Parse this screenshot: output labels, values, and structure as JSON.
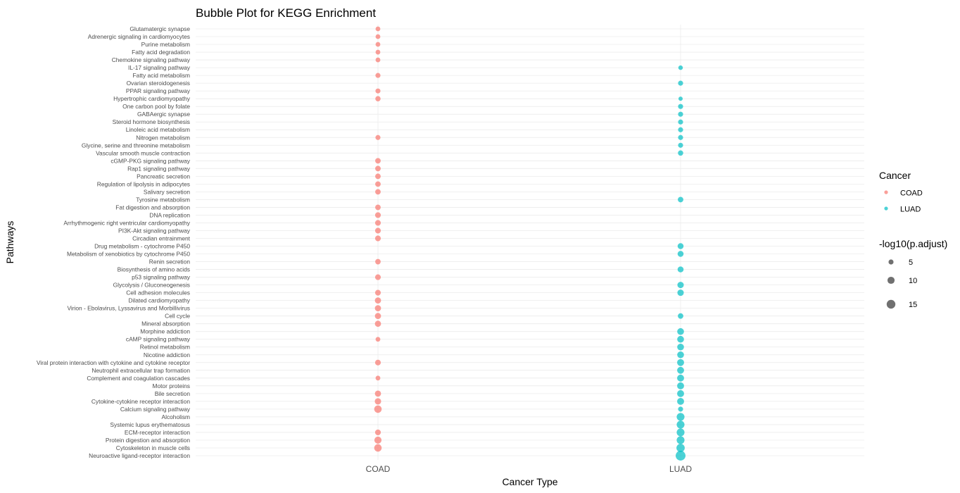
{
  "chart_data": {
    "type": "scatter",
    "title": "Bubble Plot for KEGG Enrichment",
    "xlabel": "Cancer Type",
    "ylabel": "Pathways",
    "x_categories": [
      "COAD",
      "LUAD"
    ],
    "y_categories": [
      "Glutamatergic synapse",
      "Adrenergic signaling in cardiomyocytes",
      "Purine metabolism",
      "Fatty acid degradation",
      "Chemokine signaling pathway",
      "IL-17 signaling pathway",
      "Fatty acid metabolism",
      "Ovarian steroidogenesis",
      "PPAR signaling pathway",
      "Hypertrophic cardiomyopathy",
      "One carbon pool by folate",
      "GABAergic synapse",
      "Steroid hormone biosynthesis",
      "Linoleic acid metabolism",
      "Nitrogen metabolism",
      "Glycine, serine and threonine metabolism",
      "Vascular smooth muscle contraction",
      "cGMP-PKG signaling pathway",
      "Rap1 signaling pathway",
      "Pancreatic secretion",
      "Regulation of lipolysis in adipocytes",
      "Salivary secretion",
      "Tyrosine metabolism",
      "Fat digestion and absorption",
      "DNA replication",
      "Arrhythmogenic right ventricular cardiomyopathy",
      "PI3K-Akt signaling pathway",
      "Circadian entrainment",
      "Drug metabolism - cytochrome P450",
      "Metabolism of xenobiotics by cytochrome P450",
      "Renin secretion",
      "Biosynthesis of amino acids",
      "p53 signaling pathway",
      "Glycolysis / Gluconeogenesis",
      "Cell adhesion molecules",
      "Dilated cardiomyopathy",
      "Virion - Ebolavirus, Lyssavirus and Morbillivirus",
      "Cell cycle",
      "Mineral absorption",
      "Morphine addiction",
      "cAMP signaling pathway",
      "Retinol metabolism",
      "Nicotine addiction",
      "Viral protein interaction with cytokine and cytokine receptor",
      "Neutrophil extracellular trap formation",
      "Complement and coagulation cascades",
      "Motor proteins",
      "Bile secretion",
      "Cytokine-cytokine receptor interaction",
      "Calcium signaling pathway",
      "Alcoholism",
      "Systemic lupus erythematosus",
      "ECM-receptor interaction",
      "Protein digestion and absorption",
      "Cytoskeleton in muscle cells",
      "Neuroactive ligand-receptor interaction"
    ],
    "series": [
      {
        "name": "COAD",
        "color": "#F8766D",
        "points": [
          {
            "pathway": "Glutamatergic synapse",
            "neglog10_padj": 4.5
          },
          {
            "pathway": "Adrenergic signaling in cardiomyocytes",
            "neglog10_padj": 4.5
          },
          {
            "pathway": "Purine metabolism",
            "neglog10_padj": 4.5
          },
          {
            "pathway": "Fatty acid degradation",
            "neglog10_padj": 4.5
          },
          {
            "pathway": "Chemokine signaling pathway",
            "neglog10_padj": 4.5
          },
          {
            "pathway": "Fatty acid metabolism",
            "neglog10_padj": 5
          },
          {
            "pathway": "PPAR signaling pathway",
            "neglog10_padj": 5
          },
          {
            "pathway": "Hypertrophic cardiomyopathy",
            "neglog10_padj": 5.5
          },
          {
            "pathway": "Nitrogen metabolism",
            "neglog10_padj": 5
          },
          {
            "pathway": "cGMP-PKG signaling pathway",
            "neglog10_padj": 6
          },
          {
            "pathway": "Rap1 signaling pathway",
            "neglog10_padj": 6
          },
          {
            "pathway": "Pancreatic secretion",
            "neglog10_padj": 6
          },
          {
            "pathway": "Regulation of lipolysis in adipocytes",
            "neglog10_padj": 6
          },
          {
            "pathway": "Salivary secretion",
            "neglog10_padj": 6
          },
          {
            "pathway": "Fat digestion and absorption",
            "neglog10_padj": 6
          },
          {
            "pathway": "DNA replication",
            "neglog10_padj": 6.5
          },
          {
            "pathway": "Arrhythmogenic right ventricular cardiomyopathy",
            "neglog10_padj": 6.5
          },
          {
            "pathway": "PI3K-Akt signaling pathway",
            "neglog10_padj": 6.5
          },
          {
            "pathway": "Circadian entrainment",
            "neglog10_padj": 6.5
          },
          {
            "pathway": "Renin secretion",
            "neglog10_padj": 6
          },
          {
            "pathway": "p53 signaling pathway",
            "neglog10_padj": 6.5
          },
          {
            "pathway": "Cell adhesion molecules",
            "neglog10_padj": 6.5
          },
          {
            "pathway": "Dilated cardiomyopathy",
            "neglog10_padj": 7.5
          },
          {
            "pathway": "Virion - Ebolavirus, Lyssavirus and Morbillivirus",
            "neglog10_padj": 7.5
          },
          {
            "pathway": "Cell cycle",
            "neglog10_padj": 7.5
          },
          {
            "pathway": "Mineral absorption",
            "neglog10_padj": 7.5
          },
          {
            "pathway": "cAMP signaling pathway",
            "neglog10_padj": 4.5
          },
          {
            "pathway": "Viral protein interaction with cytokine and cytokine receptor",
            "neglog10_padj": 6.5
          },
          {
            "pathway": "Complement and coagulation cascades",
            "neglog10_padj": 4.5
          },
          {
            "pathway": "Bile secretion",
            "neglog10_padj": 7.5
          },
          {
            "pathway": "Cytokine-cytokine receptor interaction",
            "neglog10_padj": 8
          },
          {
            "pathway": "Calcium signaling pathway",
            "neglog10_padj": 11
          },
          {
            "pathway": "ECM-receptor interaction",
            "neglog10_padj": 6.5
          },
          {
            "pathway": "Protein digestion and absorption",
            "neglog10_padj": 10
          },
          {
            "pathway": "Cytoskeleton in muscle cells",
            "neglog10_padj": 11
          }
        ]
      },
      {
        "name": "LUAD",
        "color": "#00BFC4",
        "points": [
          {
            "pathway": "IL-17 signaling pathway",
            "neglog10_padj": 4
          },
          {
            "pathway": "Ovarian steroidogenesis",
            "neglog10_padj": 5
          },
          {
            "pathway": "Hypertrophic cardiomyopathy",
            "neglog10_padj": 3.5
          },
          {
            "pathway": "One carbon pool by folate",
            "neglog10_padj": 5
          },
          {
            "pathway": "GABAergic synapse",
            "neglog10_padj": 5
          },
          {
            "pathway": "Steroid hormone biosynthesis",
            "neglog10_padj": 5
          },
          {
            "pathway": "Linoleic acid metabolism",
            "neglog10_padj": 5
          },
          {
            "pathway": "Nitrogen metabolism",
            "neglog10_padj": 5
          },
          {
            "pathway": "Glycine, serine and threonine metabolism",
            "neglog10_padj": 5
          },
          {
            "pathway": "Vascular smooth muscle contraction",
            "neglog10_padj": 5.5
          },
          {
            "pathway": "Tyrosine metabolism",
            "neglog10_padj": 6
          },
          {
            "pathway": "Drug metabolism - cytochrome P450",
            "neglog10_padj": 7
          },
          {
            "pathway": "Metabolism of xenobiotics by cytochrome P450",
            "neglog10_padj": 7
          },
          {
            "pathway": "Biosynthesis of amino acids",
            "neglog10_padj": 7
          },
          {
            "pathway": "Glycolysis / Gluconeogenesis",
            "neglog10_padj": 8
          },
          {
            "pathway": "Cell adhesion molecules",
            "neglog10_padj": 8
          },
          {
            "pathway": "Cell cycle",
            "neglog10_padj": 6
          },
          {
            "pathway": "Morphine addiction",
            "neglog10_padj": 9
          },
          {
            "pathway": "cAMP signaling pathway",
            "neglog10_padj": 9
          },
          {
            "pathway": "Retinol metabolism",
            "neglog10_padj": 9
          },
          {
            "pathway": "Nicotine addiction",
            "neglog10_padj": 9
          },
          {
            "pathway": "Viral protein interaction with cytokine and cytokine receptor",
            "neglog10_padj": 9.5
          },
          {
            "pathway": "Neutrophil extracellular trap formation",
            "neglog10_padj": 9.5
          },
          {
            "pathway": "Complement and coagulation cascades",
            "neglog10_padj": 9.5
          },
          {
            "pathway": "Motor proteins",
            "neglog10_padj": 9.5
          },
          {
            "pathway": "Bile secretion",
            "neglog10_padj": 9.5
          },
          {
            "pathway": "Cytokine-cytokine receptor interaction",
            "neglog10_padj": 9.5
          },
          {
            "pathway": "Calcium signaling pathway",
            "neglog10_padj": 5
          },
          {
            "pathway": "Alcoholism",
            "neglog10_padj": 12
          },
          {
            "pathway": "Systemic lupus erythematosus",
            "neglog10_padj": 12
          },
          {
            "pathway": "ECM-receptor interaction",
            "neglog10_padj": 12
          },
          {
            "pathway": "Protein digestion and absorption",
            "neglog10_padj": 12
          },
          {
            "pathway": "Cytoskeleton in muscle cells",
            "neglog10_padj": 13.5
          },
          {
            "pathway": "Neuroactive ligand-receptor interaction",
            "neglog10_padj": 19
          }
        ]
      }
    ],
    "legend": {
      "position": "right",
      "color_title": "Cancer",
      "color_items": [
        "COAD",
        "LUAD"
      ],
      "size_title": "-log10(p.adjust)",
      "size_breaks": [
        5,
        10,
        15
      ],
      "size_break_labels": [
        "5",
        "10",
        "15"
      ]
    },
    "grid": true,
    "point_alpha": 0.7,
    "size_color": "#333333"
  }
}
